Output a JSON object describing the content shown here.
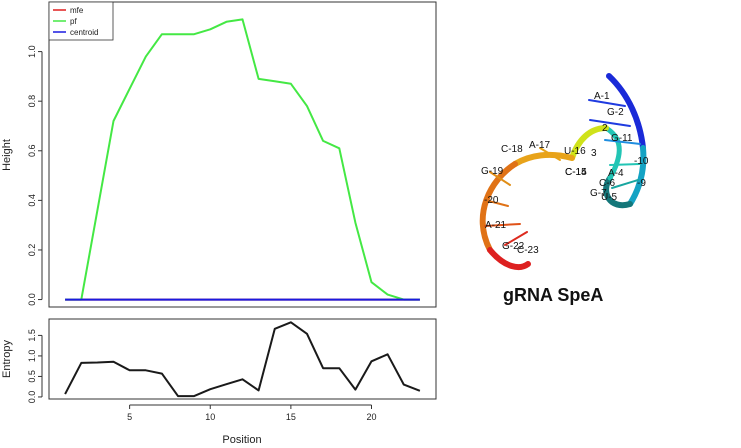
{
  "chart_data": [
    {
      "type": "line",
      "xlabel": "",
      "ylabel": "Height",
      "xlim": [
        0,
        24
      ],
      "ylim": [
        -0.03,
        1.2
      ],
      "yticks": [
        0.0,
        0.2,
        0.4,
        0.6,
        0.8,
        1.0
      ],
      "grid": false,
      "legend": {
        "placement": "top-left",
        "entries": [
          "mfe",
          "pf",
          "centroid"
        ]
      },
      "x": [
        1,
        2,
        3,
        4,
        5,
        6,
        7,
        8,
        9,
        10,
        11,
        12,
        13,
        14,
        15,
        16,
        17,
        18,
        19,
        20,
        21,
        22,
        23
      ],
      "series": [
        {
          "name": "mfe",
          "color": "#e01e1e",
          "values": [
            0,
            0,
            0,
            0,
            0,
            0,
            0,
            0,
            0,
            0,
            0,
            0,
            0,
            0,
            0,
            0,
            0,
            0,
            0,
            0,
            0,
            0,
            0
          ]
        },
        {
          "name": "pf",
          "color": "#44e844",
          "values": [
            0,
            0,
            0.36,
            0.72,
            0.85,
            0.98,
            1.07,
            1.07,
            1.07,
            1.09,
            1.12,
            1.13,
            0.89,
            0.88,
            0.87,
            0.78,
            0.64,
            0.61,
            0.31,
            0.07,
            0.02,
            0,
            0
          ]
        },
        {
          "name": "centroid",
          "color": "#1a1ae0",
          "values": [
            0,
            0,
            0,
            0,
            0,
            0,
            0,
            0,
            0,
            0,
            0,
            0,
            0,
            0,
            0,
            0,
            0,
            0,
            0,
            0,
            0,
            0,
            0
          ]
        }
      ]
    },
    {
      "type": "line",
      "xlabel": "Position",
      "ylabel": "Entropy",
      "xlim": [
        0,
        24
      ],
      "ylim": [
        -0.05,
        1.9
      ],
      "yticks": [
        0.0,
        0.5,
        1.0,
        1.5
      ],
      "xticks": [
        5,
        10,
        15,
        20
      ],
      "grid": false,
      "x": [
        1,
        2,
        3,
        4,
        5,
        6,
        7,
        8,
        9,
        10,
        11,
        12,
        13,
        14,
        15,
        16,
        17,
        18,
        19,
        20,
        21,
        22,
        23
      ],
      "series": [
        {
          "color": "#1a1a1a",
          "values": [
            0.07,
            0.83,
            0.84,
            0.86,
            0.65,
            0.65,
            0.57,
            0.02,
            0.02,
            0.19,
            0.31,
            0.43,
            0.16,
            1.66,
            1.82,
            1.54,
            0.7,
            0.7,
            0.18,
            0.87,
            1.04,
            0.3,
            0.15
          ]
        }
      ]
    }
  ],
  "rna_figure": {
    "caption": "gRNA SpeA",
    "nucleotide_labels": [
      "A-1",
      "G-2",
      "2",
      "G-11",
      "-10",
      "C-18",
      "A-17",
      "U-16",
      "3",
      "C-15",
      "C-14",
      "-9",
      "A-4",
      "G-7",
      "C-6",
      "U-5",
      "G-19",
      "-20",
      "A-21",
      "G-22",
      "C-23"
    ]
  }
}
